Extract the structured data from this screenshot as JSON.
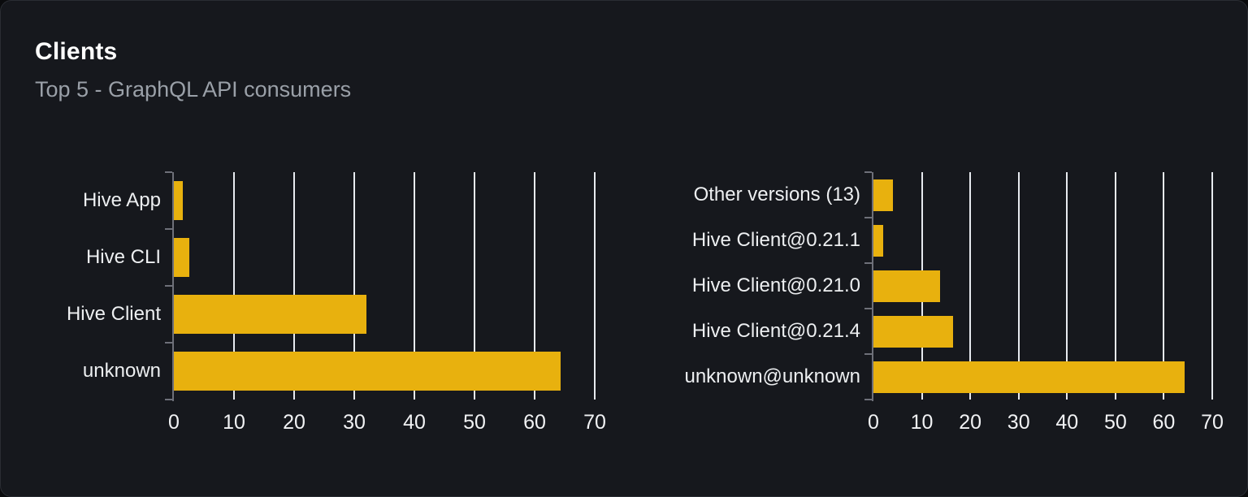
{
  "header": {
    "title": "Clients",
    "subtitle": "Top 5 - GraphQL API consumers"
  },
  "colors": {
    "bar": "#e8b10e",
    "gridline": "#e7eaef",
    "axis": "#6e7079",
    "card_background": "#16181d",
    "page_background": "#0a0b0d",
    "title_text": "#ffffff",
    "subtitle_text": "#9aa0a8",
    "label_text": "#edeff1"
  },
  "chart_data": [
    {
      "type": "bar",
      "orientation": "horizontal",
      "title": "",
      "categories": [
        "Hive App",
        "Hive CLI",
        "Hive Client",
        "unknown"
      ],
      "values": [
        1.5,
        2.5,
        32,
        64.3
      ],
      "x_ticks": [
        0,
        10,
        20,
        30,
        40,
        50,
        60,
        70
      ],
      "xlim": [
        0,
        70
      ],
      "xlabel": "",
      "ylabel": "",
      "grid": true,
      "legend": false,
      "bar_color": "#e8b10e"
    },
    {
      "type": "bar",
      "orientation": "horizontal",
      "title": "",
      "categories": [
        "Other versions (13)",
        "Hive Client@0.21.1",
        "Hive Client@0.21.0",
        "Hive Client@0.21.4",
        "unknown@unknown"
      ],
      "values": [
        4,
        2,
        13.8,
        16.5,
        64.3
      ],
      "x_ticks": [
        0,
        10,
        20,
        30,
        40,
        50,
        60,
        70
      ],
      "xlim": [
        0,
        70
      ],
      "xlabel": "",
      "ylabel": "",
      "grid": true,
      "legend": false,
      "bar_color": "#e8b10e"
    }
  ]
}
